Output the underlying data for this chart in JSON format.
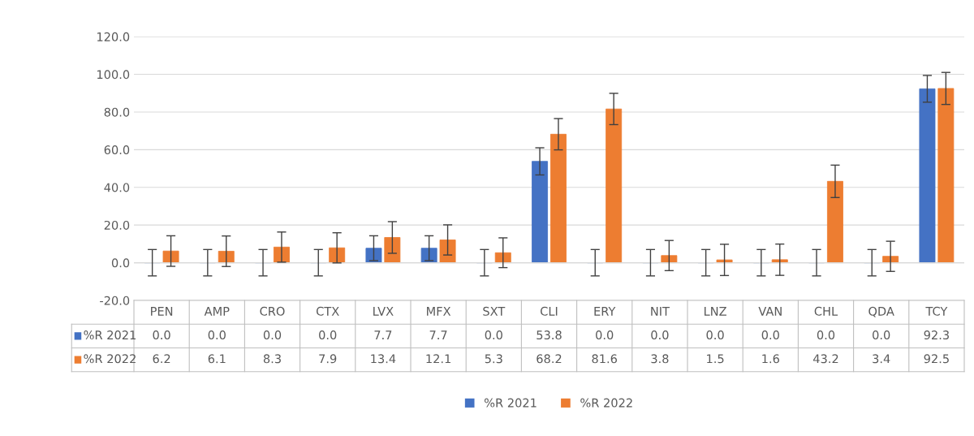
{
  "chart_data": {
    "type": "bar",
    "categories": [
      "PEN",
      "AMP",
      "CRO",
      "CTX",
      "LVX",
      "MFX",
      "SXT",
      "CLI",
      "ERY",
      "NIT",
      "LNZ",
      "VAN",
      "CHL",
      "QDA",
      "TCY"
    ],
    "series": [
      {
        "name": "%R 2021",
        "color": "#4472c4",
        "values": [
          0.0,
          0.0,
          0.0,
          0.0,
          7.7,
          7.7,
          0.0,
          53.8,
          0.0,
          0.0,
          0.0,
          0.0,
          0.0,
          0.0,
          92.3
        ],
        "errors": [
          7,
          7,
          7,
          7,
          6.6,
          6.6,
          7,
          7.2,
          7,
          7,
          7,
          7,
          7,
          7,
          7.1
        ],
        "value_labels": [
          "0.0",
          "0.0",
          "0.0",
          "0.0",
          "7.7",
          "7.7",
          "0.0",
          "53.8",
          "0.0",
          "0.0",
          "0.0",
          "0.0",
          "0.0",
          "0.0",
          "92.3"
        ]
      },
      {
        "name": "%R 2022",
        "color": "#ed7d31",
        "values": [
          6.2,
          6.1,
          8.3,
          7.9,
          13.4,
          12.1,
          5.3,
          68.2,
          81.6,
          3.8,
          1.5,
          1.6,
          43.2,
          3.4,
          92.5
        ],
        "errors": [
          8.1,
          8.1,
          8,
          8,
          8.4,
          8,
          7.9,
          8.3,
          8.3,
          8,
          8.3,
          8.3,
          8.6,
          8,
          8.5
        ],
        "value_labels": [
          "6.2",
          "6.1",
          "8.3",
          "7.9",
          "13.4",
          "12.1",
          "5.3",
          "68.2",
          "81.6",
          "3.8",
          "1.5",
          "1.6",
          "43.2",
          "3.4",
          "92.5"
        ]
      }
    ],
    "ylim": [
      -20,
      120
    ],
    "yticks": [
      {
        "value": -20,
        "label": "-20.0"
      },
      {
        "value": 0,
        "label": "0.0"
      },
      {
        "value": 20,
        "label": "20.0"
      },
      {
        "value": 40,
        "label": "40.0"
      },
      {
        "value": 60,
        "label": "60.0"
      },
      {
        "value": 80,
        "label": "80.0"
      },
      {
        "value": 100,
        "label": "100.0"
      },
      {
        "value": 120,
        "label": "120.0"
      }
    ],
    "grid": "y",
    "legend": "bottom"
  }
}
